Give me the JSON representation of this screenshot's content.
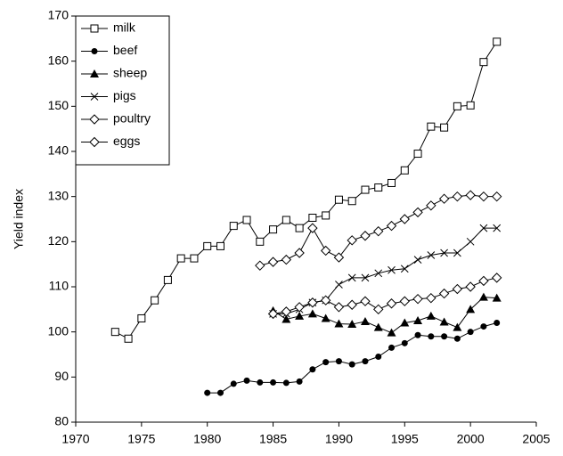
{
  "chart_data": {
    "type": "line",
    "ylabel": "Yield index",
    "xlim": [
      1970,
      2005
    ],
    "xticks": [
      1970,
      1975,
      1980,
      1985,
      1990,
      1995,
      2000,
      2005
    ],
    "ylim": [
      80,
      170
    ],
    "yticks": [
      80,
      90,
      100,
      110,
      120,
      130,
      140,
      150,
      160,
      170
    ],
    "grid": false,
    "legend": "upper left",
    "series": [
      {
        "name": "milk",
        "color": "#000000",
        "marker": "open-square",
        "x": [
          1973,
          1974,
          1975,
          1976,
          1977,
          1978,
          1979,
          1980,
          1981,
          1982,
          1983,
          1984,
          1985,
          1986,
          1987,
          1988,
          1989,
          1990,
          1991,
          1992,
          1993,
          1994,
          1995,
          1996,
          1997,
          1998,
          1999,
          2000,
          2001,
          2002
        ],
        "values": [
          100,
          98.5,
          103,
          107,
          111.5,
          116.3,
          116.3,
          119,
          119,
          123.5,
          124.8,
          120,
          122.7,
          124.8,
          123,
          125.3,
          125.8,
          129.3,
          129,
          131.5,
          132,
          133,
          135.8,
          139.5,
          145.5,
          145.3,
          150,
          150.2,
          159.8,
          164.3
        ]
      },
      {
        "name": "beef",
        "color": "#000000",
        "marker": "filled-circle",
        "x": [
          1980,
          1981,
          1982,
          1983,
          1984,
          1985,
          1986,
          1987,
          1988,
          1989,
          1990,
          1991,
          1992,
          1993,
          1994,
          1995,
          1996,
          1997,
          1998,
          1999,
          2000,
          2001,
          2002
        ],
        "values": [
          86.5,
          86.5,
          88.5,
          89.2,
          88.8,
          88.8,
          88.7,
          89,
          91.7,
          93.3,
          93.5,
          92.8,
          93.5,
          94.5,
          96.5,
          97.5,
          99.3,
          99,
          99,
          98.5,
          100,
          101.2,
          102
        ]
      },
      {
        "name": "sheep",
        "color": "#000000",
        "marker": "filled-triangle",
        "x": [
          1985,
          1986,
          1987,
          1988,
          1989,
          1990,
          1991,
          1992,
          1993,
          1994,
          1995,
          1996,
          1997,
          1998,
          1999,
          2000,
          2001,
          2002
        ],
        "values": [
          104.7,
          102.8,
          103.5,
          104,
          103,
          101.8,
          101.7,
          102.3,
          101,
          99.8,
          102,
          102.5,
          103.5,
          102.2,
          101,
          105,
          107.7,
          107.5
        ]
      },
      {
        "name": "pigs",
        "color": "#000000",
        "marker": "cross",
        "x": [
          1985,
          1986,
          1987,
          1988,
          1989,
          1990,
          1991,
          1992,
          1993,
          1994,
          1995,
          1996,
          1997,
          1998,
          1999,
          2000,
          2001,
          2002
        ],
        "values": [
          104,
          104,
          105,
          106.5,
          107,
          110.5,
          112,
          112,
          113,
          113.7,
          114,
          116,
          117,
          117.5,
          117.5,
          120,
          123,
          123
        ]
      },
      {
        "name": "poultry",
        "color": "#000000",
        "marker": "open-diamond",
        "x": [
          1985,
          1986,
          1987,
          1988,
          1989,
          1990,
          1991,
          1992,
          1993,
          1994,
          1995,
          1996,
          1997,
          1998,
          1999,
          2000,
          2001,
          2002
        ],
        "values": [
          104,
          104.5,
          105.5,
          106.5,
          107,
          105.5,
          106,
          106.8,
          105,
          106.3,
          106.8,
          107.3,
          107.5,
          108.5,
          109.5,
          110,
          111.3,
          112
        ]
      },
      {
        "name": "eggs",
        "color": "#000000",
        "marker": "open-diamond",
        "x": [
          1984,
          1985,
          1986,
          1987,
          1988,
          1989,
          1990,
          1991,
          1992,
          1993,
          1994,
          1995,
          1996,
          1997,
          1998,
          1999,
          2000,
          2001,
          2002
        ],
        "values": [
          114.7,
          115.5,
          116,
          117.5,
          123,
          118,
          116.5,
          120.3,
          121.3,
          122.3,
          123.5,
          125,
          126.5,
          128,
          129.5,
          130,
          130.3,
          130,
          130
        ]
      }
    ]
  }
}
